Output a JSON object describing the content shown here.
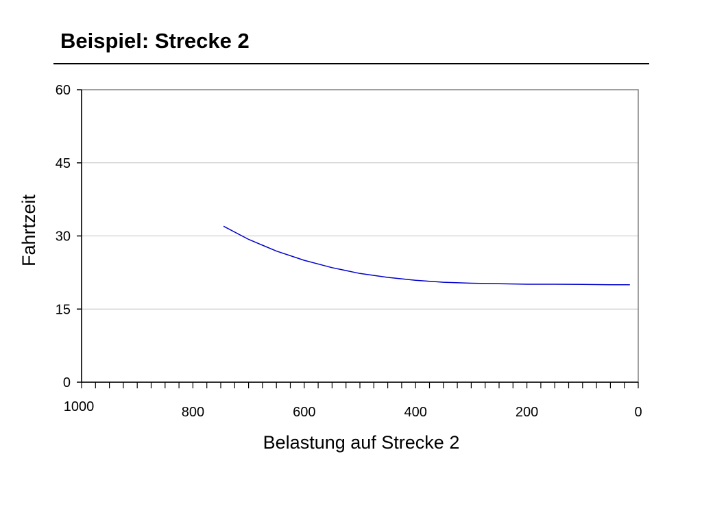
{
  "slide": {
    "title": "Beispiel: Strecke 2"
  },
  "chart_data": {
    "type": "line",
    "title": "",
    "xlabel": "Belastung auf Strecke 2",
    "ylabel": "Fahrtzeit",
    "xlim": [
      1000,
      0
    ],
    "ylim": [
      0,
      60
    ],
    "x_reversed": true,
    "grid": true,
    "yticks": [
      0,
      15,
      30,
      45,
      60
    ],
    "xtick_labels": [
      "1000",
      "800",
      "600",
      "400",
      "200",
      "0"
    ],
    "xtick_values": [
      1000,
      800,
      600,
      400,
      200,
      0
    ],
    "series": [
      {
        "color": "#0000cc",
        "x": [
          745,
          700,
          650,
          600,
          550,
          500,
          450,
          400,
          350,
          300,
          250,
          200,
          150,
          100,
          50,
          15
        ],
        "y": [
          32.0,
          29.3,
          26.9,
          25.0,
          23.5,
          22.3,
          21.5,
          20.9,
          20.5,
          20.3,
          20.2,
          20.1,
          20.1,
          20.05,
          20.0,
          20.0
        ]
      }
    ]
  }
}
